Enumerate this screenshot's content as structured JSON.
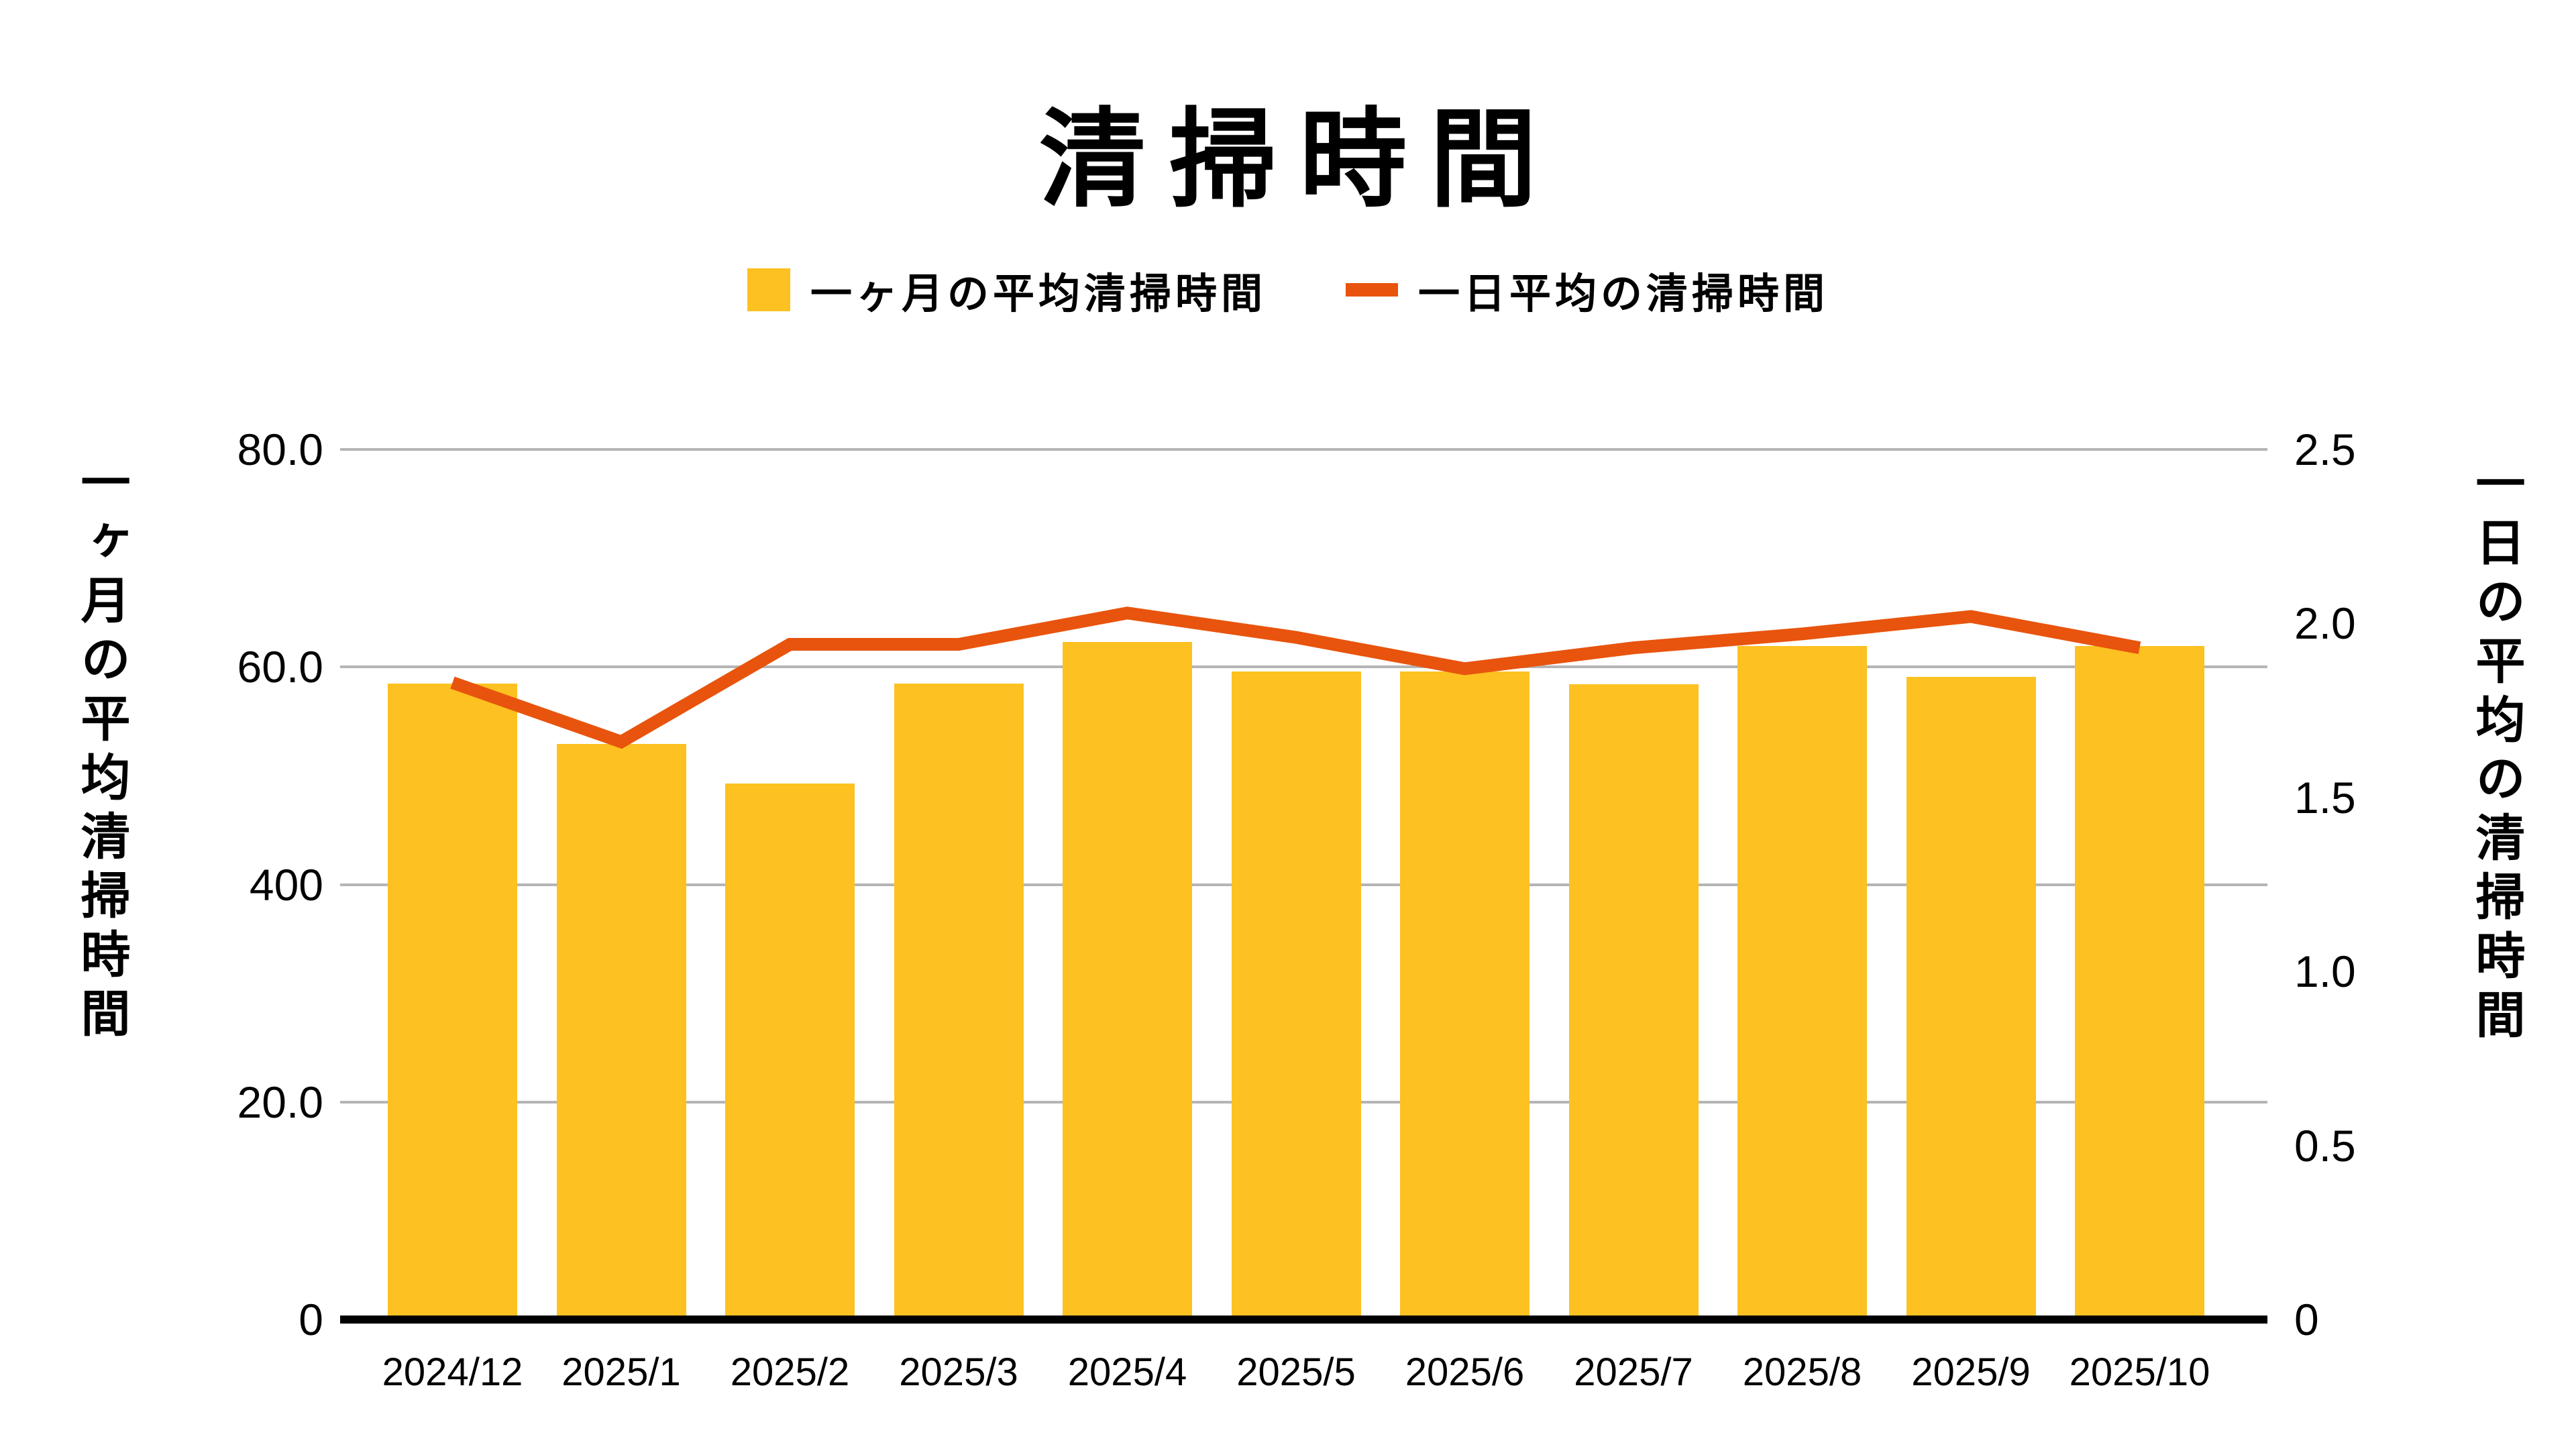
{
  "title": "清掃時間",
  "legend": {
    "items": [
      {
        "label": "一ヶ月の平均清掃時間",
        "swatch": "bar-square",
        "color": "#FDC121"
      },
      {
        "label": "一日平均の清掃時間",
        "swatch": "line-dash",
        "color": "#E8540D"
      }
    ]
  },
  "left_axis": {
    "title": "一ヶ月の平均清掃時間",
    "ticks": [
      "80.0",
      "60.0",
      "400",
      "20.0",
      "0"
    ]
  },
  "right_axis": {
    "title": "一日の平均の清掃時間",
    "ticks": [
      "2.5",
      "2.0",
      "1.5",
      "1.0",
      "0.5",
      "0"
    ]
  },
  "colors": {
    "bar": "#FDC121",
    "line": "#E8540D",
    "grid": "#B5B5B5",
    "axis": "#000000"
  },
  "chart_data": {
    "type": "bar",
    "subtype": "bar+line combo, dual axis",
    "title": "清掃時間",
    "categories": [
      "2024/12",
      "2025/1",
      "2025/2",
      "2025/3",
      "2025/4",
      "2025/5",
      "2025/6",
      "2025/7",
      "2025/8",
      "2025/9",
      "2025/10"
    ],
    "series": [
      {
        "name": "一ヶ月の平均清掃時間",
        "type": "bar",
        "axis": "left",
        "color": "#FDC121",
        "values": [
          58.5,
          52.9,
          49.3,
          58.5,
          62.3,
          59.6,
          59.6,
          58.4,
          61.9,
          59.1,
          61.9
        ]
      },
      {
        "name": "一日平均の清掃時間",
        "type": "line",
        "axis": "right",
        "color": "#E8540D",
        "values": [
          1.83,
          1.66,
          1.94,
          1.94,
          2.03,
          1.96,
          1.87,
          1.93,
          1.97,
          2.02,
          1.93
        ]
      }
    ],
    "left_ylabel": "一ヶ月の平均清掃時間",
    "right_ylabel": "一日の平均の清掃時間",
    "left_ylim": [
      0,
      80
    ],
    "right_ylim": [
      0,
      2.5
    ],
    "left_tick_labels": [
      "80.0",
      "60.0",
      "400",
      "20.0",
      "0"
    ],
    "right_tick_labels": [
      "2.5",
      "2.0",
      "1.5",
      "1.0",
      "0.5",
      "0"
    ],
    "grid": true,
    "legend_position": "top"
  }
}
